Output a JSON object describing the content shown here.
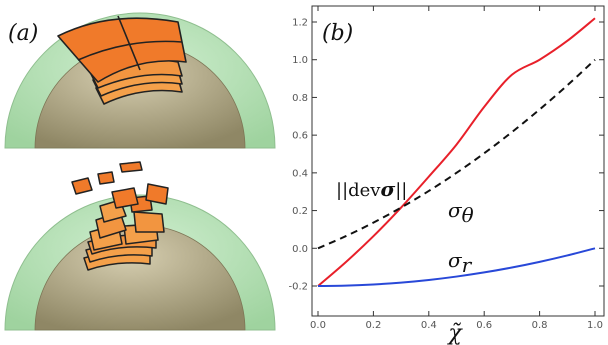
{
  "panels": {
    "a": {
      "label": "(a)"
    },
    "b": {
      "label": "(b)"
    }
  },
  "colors": {
    "shell": "#a9d9a9",
    "core": "#b4a986",
    "patch": "#f07a2a",
    "patch_light": "#f4a04a",
    "sigma_theta": "#e8202a",
    "sigma_r": "#2848d8",
    "dev": "#111111"
  },
  "chart_data": {
    "type": "line",
    "xlabel": "χ̃",
    "ylabel": "",
    "xlim": [
      0,
      1.0
    ],
    "ylim": [
      -0.25,
      1.25
    ],
    "x_ticks": [
      0.0,
      0.2,
      0.4,
      0.6,
      0.8,
      1.0
    ],
    "y_ticks": [
      -0.2,
      0.0,
      0.2,
      0.4,
      0.6,
      0.8,
      1.0,
      1.2
    ],
    "grid": false,
    "series": [
      {
        "name": "σθ",
        "style": "solid",
        "color": "#e8202a",
        "x": [
          0,
          0.1,
          0.2,
          0.3,
          0.4,
          0.5,
          0.6,
          0.7,
          0.8,
          0.9,
          1.0
        ],
        "y": [
          -0.2,
          -0.074,
          0.064,
          0.216,
          0.38,
          0.55,
          0.75,
          0.92,
          1.0,
          1.1,
          1.22
        ]
      },
      {
        "name": "σr",
        "style": "solid",
        "color": "#2848d8",
        "x": [
          0,
          0.1,
          0.2,
          0.3,
          0.4,
          0.5,
          0.6,
          0.7,
          0.8,
          0.9,
          1.0
        ],
        "y": [
          -0.2,
          -0.198,
          -0.192,
          -0.182,
          -0.168,
          -0.15,
          -0.128,
          -0.102,
          -0.072,
          -0.038,
          0.0
        ]
      },
      {
        "name": "||devσ||",
        "style": "dashed",
        "color": "#111111",
        "x": [
          0,
          0.1,
          0.2,
          0.3,
          0.4,
          0.5,
          0.6,
          0.7,
          0.8,
          0.9,
          1.0
        ],
        "y": [
          0.0,
          0.064,
          0.136,
          0.216,
          0.304,
          0.4,
          0.504,
          0.616,
          0.736,
          0.864,
          1.0
        ]
      }
    ]
  }
}
